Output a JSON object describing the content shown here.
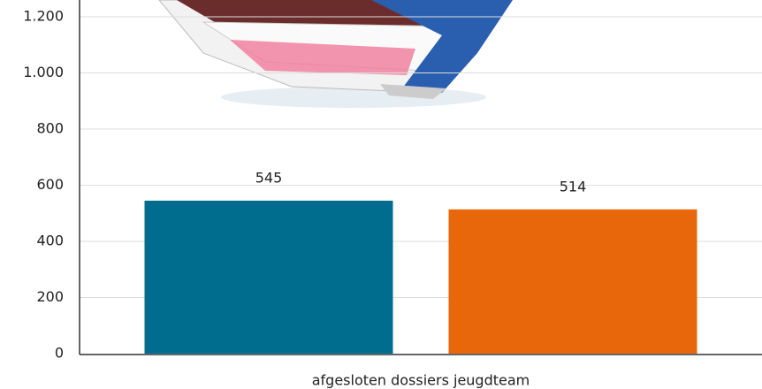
{
  "chart_data": {
    "type": "bar",
    "categories": [
      "afgesloten dossiers jeugdteam"
    ],
    "series": [
      {
        "color": "#006d8f",
        "values": [
          545
        ]
      },
      {
        "color": "#e8670b",
        "values": [
          514
        ]
      }
    ],
    "ylim": [
      0,
      1260
    ],
    "yticks": [
      0,
      200,
      400,
      600,
      800,
      {
        "value": 1000,
        "label": "1.000"
      },
      {
        "value": 1200,
        "label": "1.200"
      }
    ],
    "grid": true
  }
}
